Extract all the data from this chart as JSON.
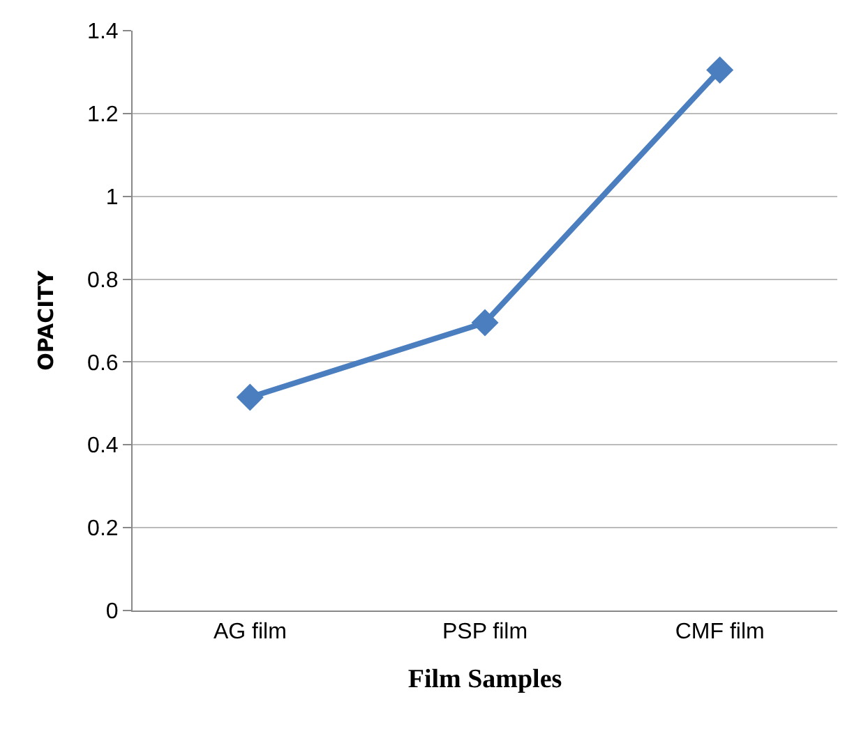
{
  "chart_data": {
    "type": "line",
    "xlabel": "Film Samples",
    "ylabel": "OPACITY",
    "categories": [
      "AG film",
      "PSP film",
      "CMF film"
    ],
    "series": [
      {
        "color": "#4a7ebf",
        "values": [
          0.515,
          0.695,
          1.305
        ]
      }
    ],
    "ylim": [
      0,
      1.4
    ],
    "yticks": [
      0,
      0.2,
      0.4,
      0.6,
      0.8,
      1,
      1.2,
      1.4
    ],
    "grid": "y",
    "marker": "diamond",
    "line_style": "solid"
  }
}
